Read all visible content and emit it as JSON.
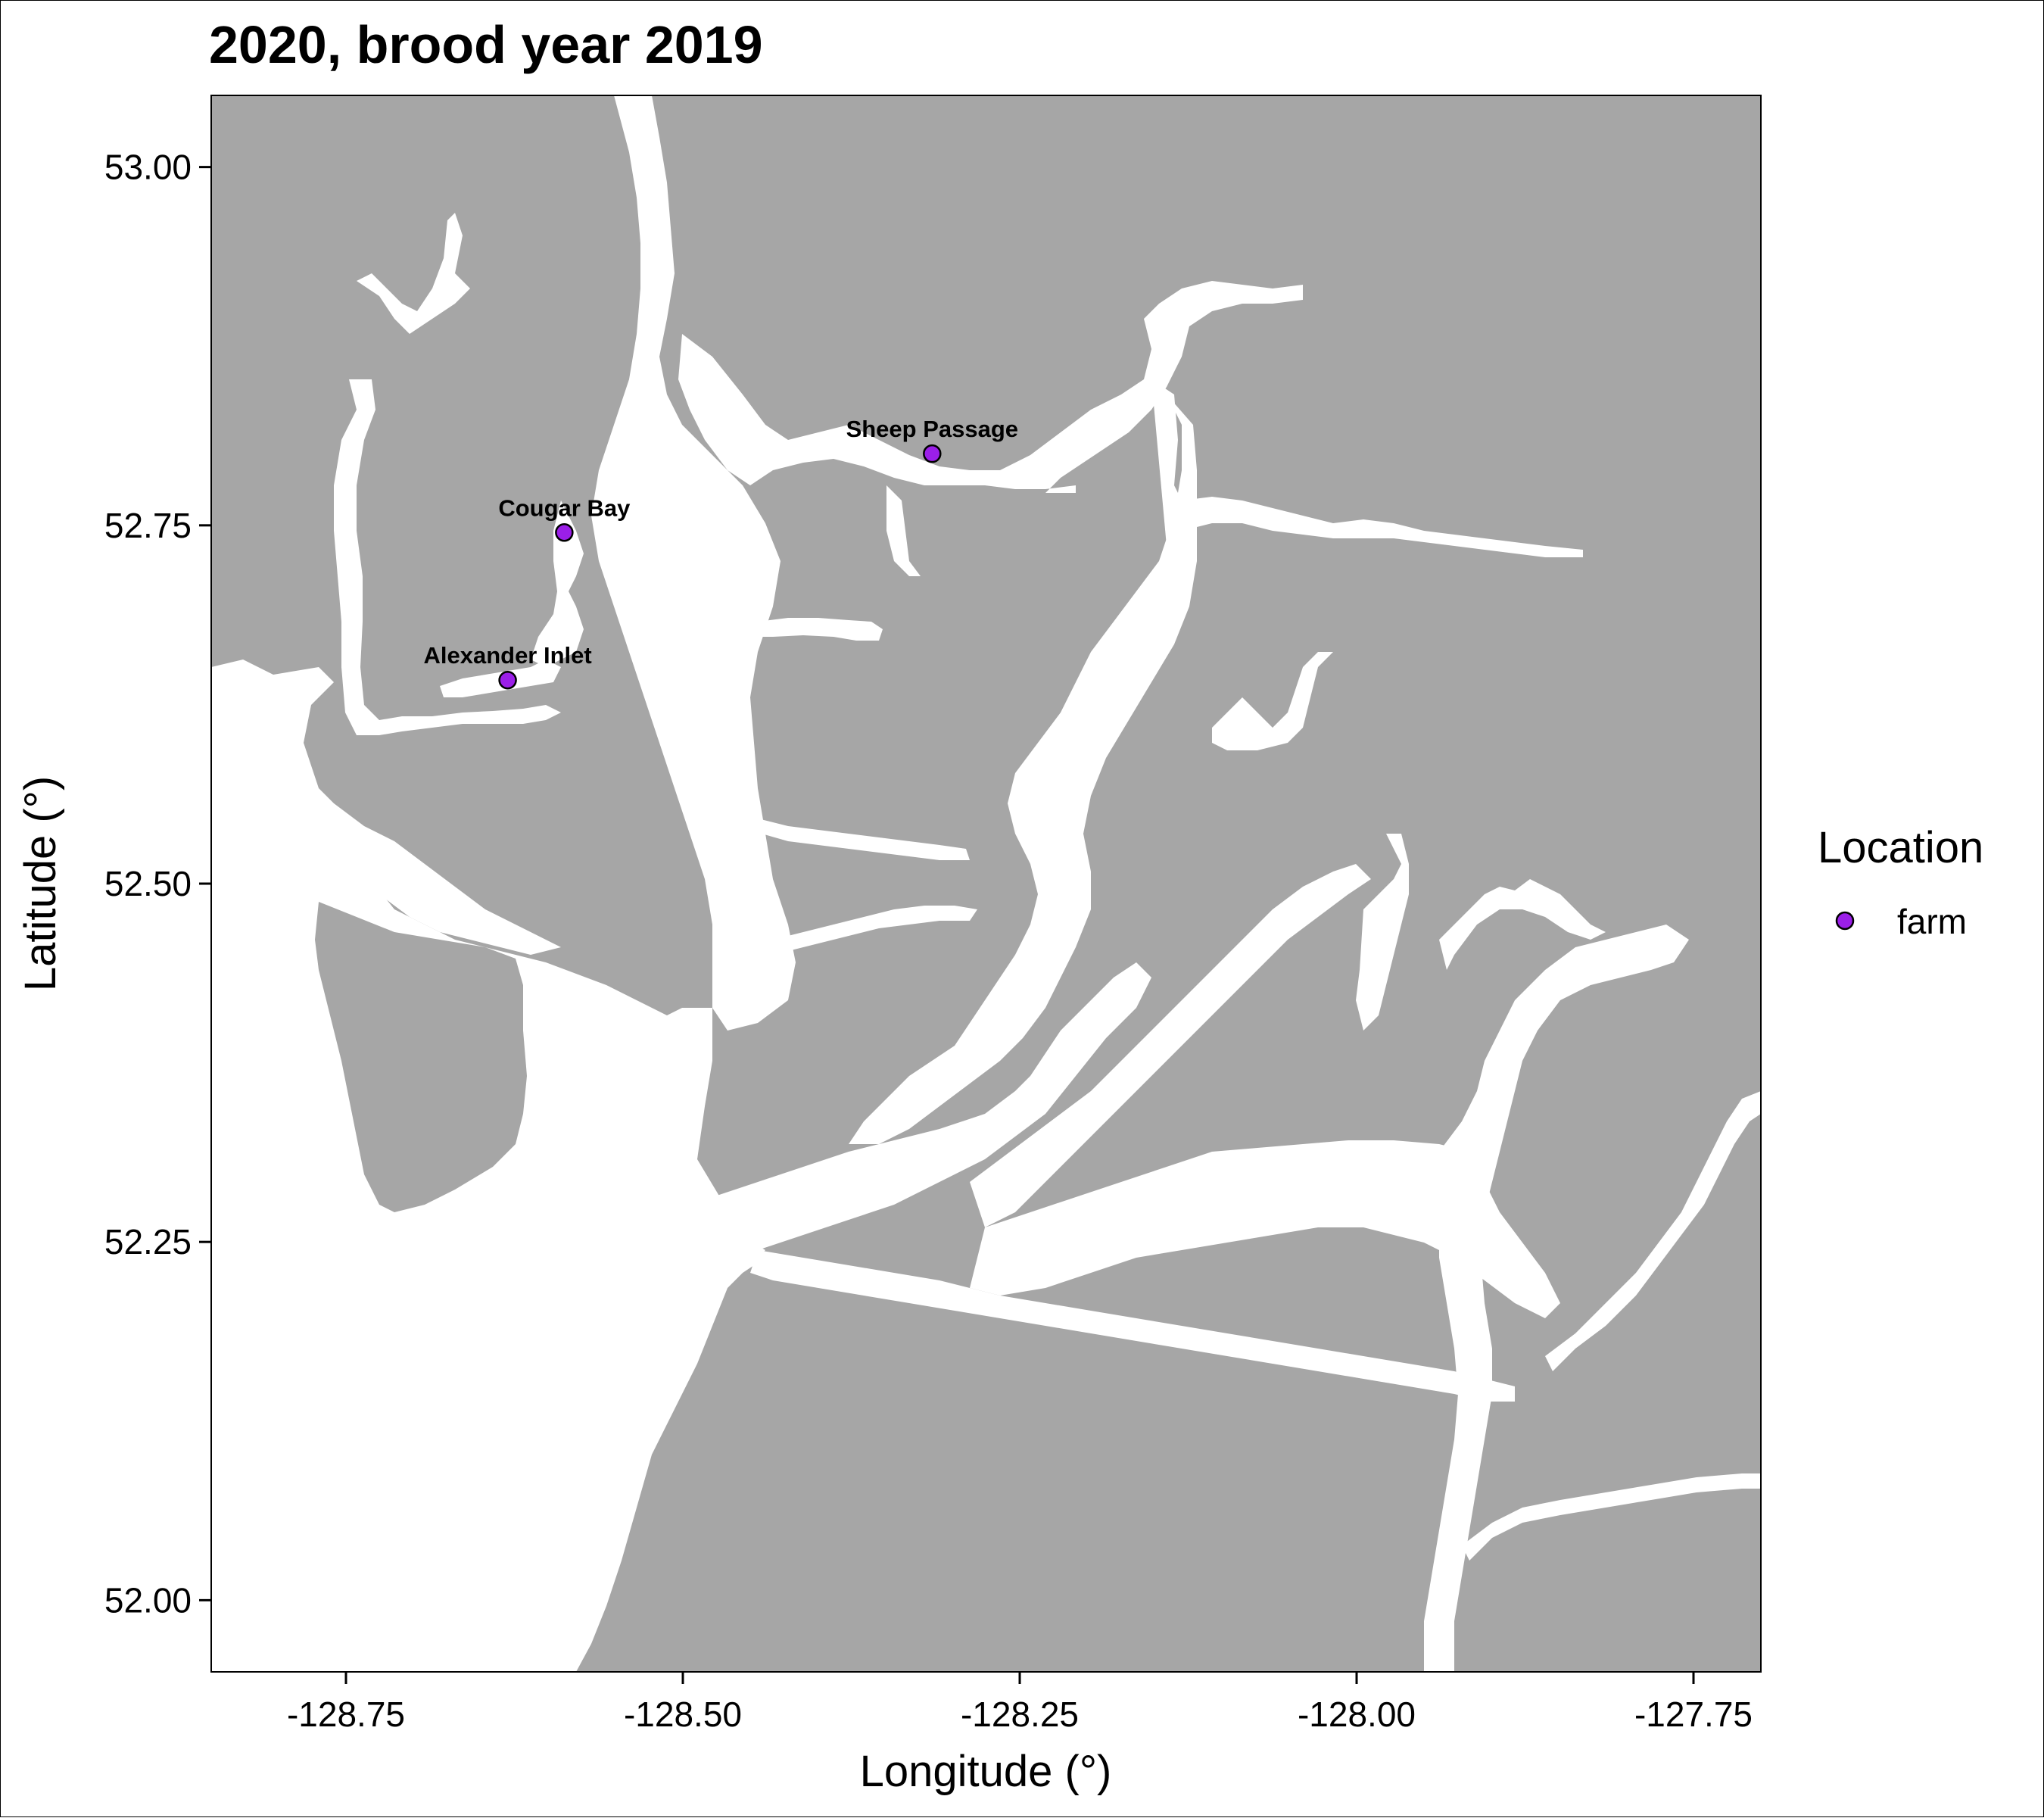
{
  "title": "2020, brood year 2019",
  "map": {
    "xlabel": "Longitude (°)",
    "ylabel": "Latitude (°)",
    "xlim": [
      -128.85,
      -127.7
    ],
    "ylim": [
      51.95,
      53.05
    ],
    "x_ticks": [
      {
        "value": -128.75,
        "label": "-128.75"
      },
      {
        "value": -128.5,
        "label": "-128.50"
      },
      {
        "value": -128.25,
        "label": "-128.25"
      },
      {
        "value": -128.0,
        "label": "-128.00"
      },
      {
        "value": -127.75,
        "label": "-127.75"
      }
    ],
    "y_ticks": [
      {
        "value": 53.0,
        "label": "53.00"
      },
      {
        "value": 52.75,
        "label": "52.75"
      },
      {
        "value": 52.5,
        "label": "52.50"
      },
      {
        "value": 52.25,
        "label": "52.25"
      },
      {
        "value": 52.0,
        "label": "52.00"
      }
    ],
    "land_color": "#a6a6a6",
    "water_color": "#ffffff",
    "farm_color": "#9b1fe8"
  },
  "farms": [
    {
      "name": "Sheep Passage",
      "lon": -128.315,
      "lat": 52.8
    },
    {
      "name": "Cougar Bay",
      "lon": -128.588,
      "lat": 52.745
    },
    {
      "name": "Alexander Inlet",
      "lon": -128.63,
      "lat": 52.642
    }
  ],
  "legend": {
    "title": "Location",
    "items": [
      {
        "label": "farm"
      }
    ]
  }
}
